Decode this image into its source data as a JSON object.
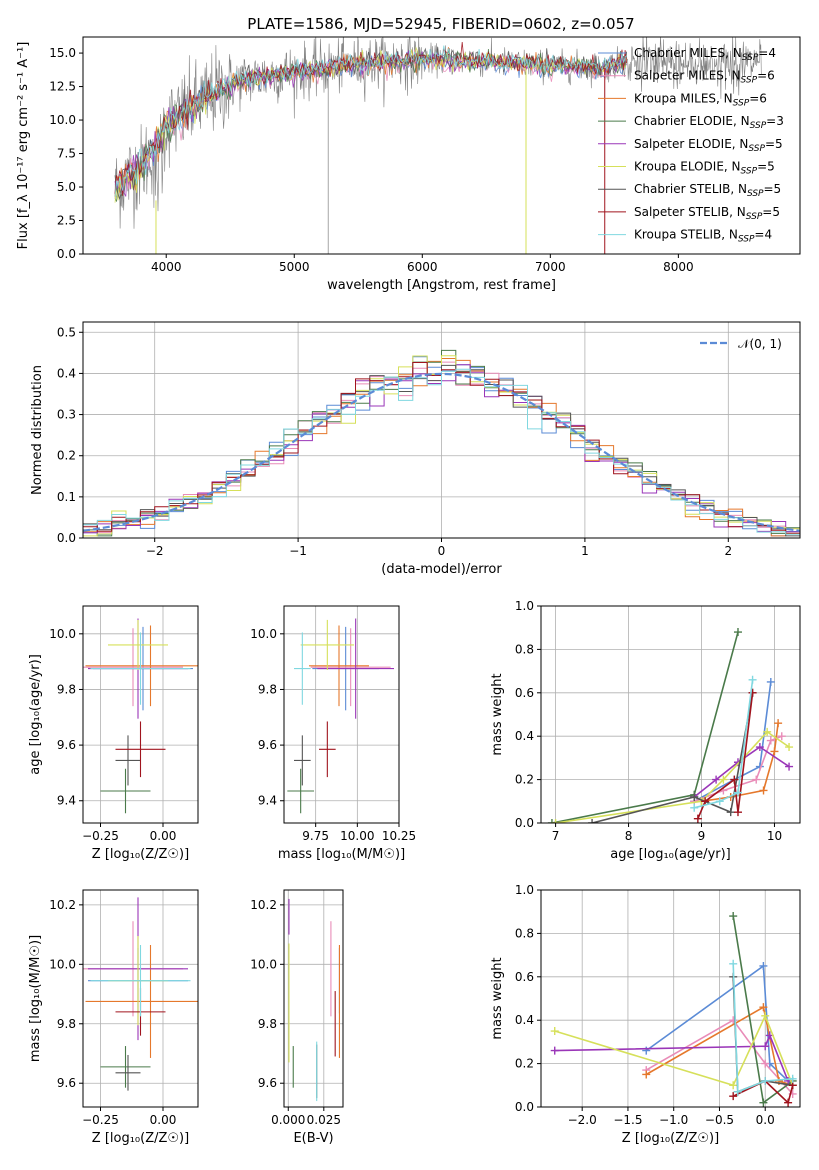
{
  "colors": {
    "Chabrier MILES": "#5b8bd6",
    "Salpeter MILES": "#e98cb8",
    "Kroupa MILES": "#e5782c",
    "Chabrier ELODIE": "#4a7a4a",
    "Salpeter ELODIE": "#9a36b8",
    "Kroupa ELODIE": "#d6e05a",
    "Chabrier STELIB": "#555555",
    "Salpeter STELIB": "#a0141e",
    "Kroupa STELIB": "#80d8e0",
    "data": "#808080"
  },
  "chart_data": [
    {
      "id": "spectrum",
      "type": "line",
      "title": "PLATE=1586, MJD=52945, FIBERID=0602, z=0.057",
      "xlabel": "wavelength [Angstrom, rest frame]",
      "ylabel": "Flux [f_λ 10⁻¹⁷ erg cm⁻² s⁻¹ A⁻¹]",
      "xlim": [
        3350,
        8950
      ],
      "ylim": [
        0,
        16.2
      ],
      "xticks": [
        4000,
        5000,
        6000,
        7000,
        8000
      ],
      "yticks": [
        0.0,
        2.5,
        5.0,
        7.5,
        10.0,
        12.5,
        15.0
      ],
      "grid": false,
      "legend_position": "right",
      "legend": [
        {
          "name": "Chabrier MILES, N_SSP=4",
          "text": "Chabrier MILES, N",
          "sub": "SSP",
          "val": "=4"
        },
        {
          "name": "Salpeter MILES, N_SSP=6",
          "text": "Salpeter MILES, N",
          "sub": "SSP",
          "val": "=6"
        },
        {
          "name": "Kroupa MILES, N_SSP=6",
          "text": "Kroupa MILES, N",
          "sub": "SSP",
          "val": "=6"
        },
        {
          "name": "Chabrier ELODIE, N_SSP=3",
          "text": "Chabrier ELODIE, N",
          "sub": "SSP",
          "val": "=3"
        },
        {
          "name": "Salpeter ELODIE, N_SSP=5",
          "text": "Salpeter ELODIE, N",
          "sub": "SSP",
          "val": "=5"
        },
        {
          "name": "Kroupa ELODIE, N_SSP=5",
          "text": "Kroupa ELODIE, N",
          "sub": "SSP",
          "val": "=5"
        },
        {
          "name": "Chabrier STELIB, N_SSP=5",
          "text": "Chabrier STELIB, N",
          "sub": "SSP",
          "val": "=5"
        },
        {
          "name": "Salpeter STELIB, N_SSP=5",
          "text": "Salpeter STELIB, N",
          "sub": "SSP",
          "val": "=5"
        },
        {
          "name": "Kroupa STELIB, N_SSP=4",
          "text": "Kroupa STELIB, N",
          "sub": "SSP",
          "val": "=4"
        }
      ],
      "model_curve": {
        "x": [
          3600,
          3700,
          3800,
          3900,
          4000,
          4100,
          4200,
          4300,
          4400,
          4500,
          4600,
          4800,
          5000,
          5200,
          5400,
          5600,
          5800,
          6000,
          6200,
          6400,
          6600,
          6800,
          7000,
          7200,
          7400,
          7600
        ],
        "y": [
          4.8,
          5.8,
          6.4,
          7.8,
          9.6,
          10.2,
          11.0,
          11.5,
          12.2,
          12.6,
          13.0,
          13.3,
          13.6,
          13.8,
          14.1,
          14.3,
          14.4,
          14.5,
          14.5,
          14.4,
          14.3,
          14.2,
          14.0,
          14.0,
          13.9,
          14.4
        ]
      }
    },
    {
      "id": "residuals",
      "type": "area",
      "xlabel": "(data-model)/error",
      "ylabel": "Normed distribution",
      "xlim": [
        -2.5,
        2.5
      ],
      "ylim": [
        0,
        0.525
      ],
      "xticks": [
        -2,
        -1,
        0,
        1,
        2
      ],
      "xticklabels": [
        "−2",
        "−1",
        "0",
        "1",
        "2"
      ],
      "yticks": [
        0.0,
        0.1,
        0.2,
        0.3,
        0.4,
        0.5
      ],
      "grid": true,
      "legend_position": "top-right",
      "legend_label": "𝒩(0, 1)",
      "bin_width": 0.1
    },
    {
      "id": "age-vs-Z",
      "type": "scatter",
      "xlabel": "Z [log₁₀(Z/Z☉)]",
      "ylabel": "age  [log₁₀(age/yr)]",
      "xlim": [
        -0.32,
        0.14
      ],
      "ylim": [
        9.32,
        10.1
      ],
      "xticks": [
        -0.25,
        0.0
      ],
      "xticklabels": [
        "−0.25",
        "0.00"
      ],
      "yticks": [
        9.4,
        9.6,
        9.8,
        10.0
      ],
      "grid": true,
      "points": [
        {
          "series": "Chabrier MILES",
          "x": -0.08,
          "xerr": 0.2,
          "y": 9.875,
          "yerr": 0.15
        },
        {
          "series": "Salpeter MILES",
          "x": -0.12,
          "xerr": 0.2,
          "y": 9.88,
          "yerr": 0.14
        },
        {
          "series": "Kroupa MILES",
          "x": -0.05,
          "xerr": 0.26,
          "y": 9.885,
          "yerr": 0.145
        },
        {
          "series": "Chabrier ELODIE",
          "x": -0.15,
          "xerr": 0.1,
          "y": 9.435,
          "yerr": 0.08
        },
        {
          "series": "Salpeter ELODIE",
          "x": -0.1,
          "xerr": 0.2,
          "y": 9.875,
          "yerr": 0.18
        },
        {
          "series": "Kroupa ELODIE",
          "x": -0.1,
          "xerr": 0.12,
          "y": 9.96,
          "yerr": 0.09
        },
        {
          "series": "Chabrier STELIB",
          "x": -0.14,
          "xerr": 0.05,
          "y": 9.545,
          "yerr": 0.09
        },
        {
          "series": "Salpeter STELIB",
          "x": -0.09,
          "xerr": 0.1,
          "y": 9.585,
          "yerr": 0.1
        },
        {
          "series": "Kroupa STELIB",
          "x": -0.09,
          "xerr": 0.2,
          "y": 9.875,
          "yerr": 0.13
        }
      ]
    },
    {
      "id": "age-vs-mass",
      "type": "scatter",
      "xlabel": "mass [log₁₀(M/M☉)]",
      "ylabel": "",
      "xlim": [
        9.56,
        10.25
      ],
      "ylim": [
        9.32,
        10.1
      ],
      "xticks": [
        9.75,
        10.0,
        10.25
      ],
      "xticklabels": [
        "9.75",
        "10.00",
        "10.25"
      ],
      "yticks": [
        9.4,
        9.6,
        9.8,
        10.0
      ],
      "grid": true,
      "points": [
        {
          "series": "Chabrier MILES",
          "x": 9.93,
          "xerr": 0.2,
          "y": 9.875,
          "yerr": 0.15
        },
        {
          "series": "Salpeter MILES",
          "x": 9.96,
          "xerr": 0.24,
          "y": 9.88,
          "yerr": 0.14
        },
        {
          "series": "Kroupa MILES",
          "x": 9.89,
          "xerr": 0.18,
          "y": 9.885,
          "yerr": 0.145
        },
        {
          "series": "Chabrier ELODIE",
          "x": 9.66,
          "xerr": 0.08,
          "y": 9.435,
          "yerr": 0.08
        },
        {
          "series": "Salpeter ELODIE",
          "x": 9.99,
          "xerr": 0.23,
          "y": 9.875,
          "yerr": 0.18
        },
        {
          "series": "Kroupa ELODIE",
          "x": 9.82,
          "xerr": 0.16,
          "y": 9.96,
          "yerr": 0.09
        },
        {
          "series": "Chabrier STELIB",
          "x": 9.67,
          "xerr": 0.05,
          "y": 9.545,
          "yerr": 0.09
        },
        {
          "series": "Salpeter STELIB",
          "x": 9.82,
          "xerr": 0.05,
          "y": 9.585,
          "yerr": 0.1
        },
        {
          "series": "Kroupa STELIB",
          "x": 9.67,
          "xerr": 0.05,
          "y": 9.875,
          "yerr": 0.13
        }
      ]
    },
    {
      "id": "mass-weight-vs-age",
      "type": "line",
      "xlabel": "age  [log₁₀(age/yr)]",
      "ylabel": "mass weight",
      "xlim": [
        6.8,
        10.35
      ],
      "ylim": [
        0,
        1.0
      ],
      "xticks": [
        7,
        8,
        9,
        10
      ],
      "yticks": [
        0.0,
        0.2,
        0.4,
        0.6,
        0.8,
        1.0
      ],
      "grid": true,
      "series": [
        {
          "name": "Chabrier MILES",
          "x": [
            8.9,
            9.45,
            9.8,
            9.95
          ],
          "y": [
            0.1,
            0.2,
            0.26,
            0.65
          ]
        },
        {
          "name": "Salpeter MILES",
          "x": [
            8.9,
            9.3,
            9.75,
            9.95,
            10.1
          ],
          "y": [
            0.1,
            0.15,
            0.2,
            0.38,
            0.4
          ]
        },
        {
          "name": "Kroupa MILES",
          "x": [
            9.0,
            9.4,
            9.85,
            10.0,
            10.05
          ],
          "y": [
            0.1,
            0.12,
            0.15,
            0.33,
            0.46
          ]
        },
        {
          "name": "Chabrier ELODIE",
          "x": [
            6.95,
            8.9,
            9.5
          ],
          "y": [
            0.0,
            0.13,
            0.88
          ]
        },
        {
          "name": "Salpeter ELODIE",
          "x": [
            8.9,
            9.2,
            9.5,
            9.8,
            10.2
          ],
          "y": [
            0.12,
            0.2,
            0.28,
            0.35,
            0.26
          ]
        },
        {
          "name": "Kroupa ELODIE",
          "x": [
            7.0,
            9.0,
            9.3,
            9.9,
            10.2
          ],
          "y": [
            0.0,
            0.1,
            0.2,
            0.42,
            0.35
          ]
        },
        {
          "name": "Chabrier STELIB",
          "x": [
            7.5,
            8.9,
            9.4,
            9.7
          ],
          "y": [
            0.0,
            0.12,
            0.05,
            0.6
          ]
        },
        {
          "name": "Salpeter STELIB",
          "x": [
            8.95,
            9.05,
            9.45,
            9.5,
            9.7
          ],
          "y": [
            0.02,
            0.1,
            0.2,
            0.05,
            0.6
          ]
        },
        {
          "name": "Kroupa STELIB",
          "x": [
            8.9,
            9.25,
            9.5,
            9.7
          ],
          "y": [
            0.07,
            0.1,
            0.14,
            0.66
          ]
        }
      ]
    },
    {
      "id": "mass-vs-Z",
      "type": "scatter",
      "xlabel": "Z [log₁₀(Z/Z☉)]",
      "ylabel": "mass [log₁₀(M/M☉)]",
      "xlim": [
        -0.32,
        0.14
      ],
      "ylim": [
        9.52,
        10.25
      ],
      "xticks": [
        -0.25,
        0.0
      ],
      "xticklabels": [
        "−0.25",
        "0.00"
      ],
      "yticks": [
        9.6,
        9.8,
        10.0,
        10.2
      ],
      "grid": true,
      "points": [
        {
          "series": "Chabrier MILES",
          "x": -0.1,
          "xerr": 0.2,
          "y": 9.945,
          "yerr": 0.11
        },
        {
          "series": "Salpeter MILES",
          "x": -0.12,
          "xerr": 0.2,
          "y": 9.985,
          "yerr": 0.16
        },
        {
          "series": "Kroupa MILES",
          "x": -0.05,
          "xerr": 0.26,
          "y": 9.875,
          "yerr": 0.19
        },
        {
          "series": "Chabrier ELODIE",
          "x": -0.15,
          "xerr": 0.1,
          "y": 9.655,
          "yerr": 0.07
        },
        {
          "series": "Salpeter ELODIE",
          "x": -0.1,
          "xerr": 0.2,
          "y": 9.985,
          "yerr": 0.24
        },
        {
          "series": "Kroupa ELODIE",
          "x": -0.1,
          "xerr": 0.12,
          "y": 9.945,
          "yerr": 0.15
        },
        {
          "series": "Chabrier STELIB",
          "x": -0.14,
          "xerr": 0.05,
          "y": 9.635,
          "yerr": 0.06
        },
        {
          "series": "Salpeter STELIB",
          "x": -0.09,
          "xerr": 0.1,
          "y": 9.84,
          "yerr": 0.08
        },
        {
          "series": "Kroupa STELIB",
          "x": -0.09,
          "xerr": 0.2,
          "y": 9.945,
          "yerr": 0.12
        }
      ]
    },
    {
      "id": "mass-vs-EBV",
      "type": "scatter",
      "xlabel": "E(B-V)",
      "ylabel": "",
      "xlim": [
        -0.003,
        0.0385
      ],
      "ylim": [
        9.52,
        10.25
      ],
      "xticks": [
        0.0,
        0.025
      ],
      "xticklabels": [
        "0.000",
        "0.025"
      ],
      "yticks": [
        9.6,
        9.8,
        10.0,
        10.2
      ],
      "grid": true,
      "points": [
        {
          "series": "Chabrier MILES",
          "x": 0.036,
          "y": 9.945,
          "yerr": 0.11
        },
        {
          "series": "Salpeter MILES",
          "x": 0.03,
          "y": 9.985,
          "yerr": 0.16
        },
        {
          "series": "Kroupa MILES",
          "x": 0.036,
          "y": 9.875,
          "yerr": 0.19
        },
        {
          "series": "Chabrier ELODIE",
          "x": 0.0035,
          "y": 9.655,
          "yerr": 0.07
        },
        {
          "series": "Salpeter ELODIE",
          "x": 0.0005,
          "y": 10.16,
          "yerr": 0.06
        },
        {
          "series": "Kroupa ELODIE",
          "x": 0.0005,
          "y": 9.87,
          "yerr": 0.2
        },
        {
          "series": "Chabrier STELIB",
          "x": 0.02,
          "y": 9.64,
          "yerr": 0.09
        },
        {
          "series": "Salpeter STELIB",
          "x": 0.033,
          "y": 9.8,
          "yerr": 0.11
        },
        {
          "series": "Kroupa STELIB",
          "x": 0.02,
          "y": 9.64,
          "yerr": 0.1
        }
      ]
    },
    {
      "id": "mass-weight-vs-Z",
      "type": "line",
      "xlabel": "Z [log₁₀(Z/Z☉)]",
      "ylabel": "mass weight",
      "xlim": [
        -2.45,
        0.38
      ],
      "ylim": [
        0,
        1.0
      ],
      "xticks": [
        -2.0,
        -1.5,
        -1.0,
        -0.5,
        0.0
      ],
      "xticklabels": [
        "−2.0",
        "−1.5",
        "−1.0",
        "−0.5",
        "0.0"
      ],
      "yticks": [
        0.0,
        0.2,
        0.4,
        0.6,
        0.8,
        1.0
      ],
      "grid": true,
      "series": [
        {
          "name": "Chabrier MILES",
          "x": [
            -1.3,
            -0.02,
            0.05,
            0.3
          ],
          "y": [
            0.26,
            0.65,
            0.2,
            0.1
          ]
        },
        {
          "name": "Salpeter MILES",
          "x": [
            -1.3,
            -0.35,
            0.0,
            0.3
          ],
          "y": [
            0.17,
            0.4,
            0.2,
            0.06
          ]
        },
        {
          "name": "Kroupa MILES",
          "x": [
            -1.3,
            -0.02,
            0.15,
            0.3
          ],
          "y": [
            0.15,
            0.46,
            0.12,
            0.1
          ]
        },
        {
          "name": "Chabrier ELODIE",
          "x": [
            -0.35,
            -0.02,
            0.3
          ],
          "y": [
            0.88,
            0.02,
            0.12
          ]
        },
        {
          "name": "Salpeter ELODIE",
          "x": [
            -2.3,
            0.0,
            0.05,
            0.25
          ],
          "y": [
            0.26,
            0.28,
            0.33,
            0.12
          ]
        },
        {
          "name": "Kroupa ELODIE",
          "x": [
            -2.3,
            -0.35,
            0.0,
            0.3
          ],
          "y": [
            0.35,
            0.1,
            0.42,
            0.1
          ]
        },
        {
          "name": "Chabrier STELIB",
          "x": [
            -0.35,
            -0.3,
            0.0,
            0.3
          ],
          "y": [
            0.6,
            0.07,
            0.12,
            0.1
          ]
        },
        {
          "name": "Salpeter STELIB",
          "x": [
            -0.35,
            0.0,
            0.25,
            0.3
          ],
          "y": [
            0.05,
            0.12,
            0.02,
            0.1
          ]
        },
        {
          "name": "Kroupa STELIB",
          "x": [
            -0.35,
            -0.3,
            0.0,
            0.3
          ],
          "y": [
            0.66,
            0.07,
            0.12,
            0.13
          ]
        }
      ]
    }
  ]
}
